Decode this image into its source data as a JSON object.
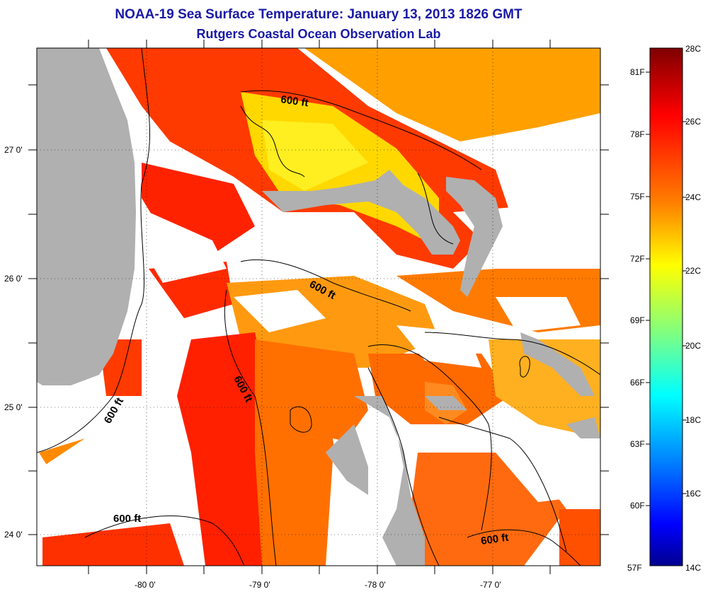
{
  "title": "NOAA-19 Sea Surface Temperature:  January 13, 2013 1826 GMT",
  "subtitle": "Rutgers Coastal Ocean Observation Lab",
  "map": {
    "lat_labels": [
      "27 0'",
      "26 0'",
      "25 0'",
      "24 0'"
    ],
    "lon_labels": [
      "-80 0'",
      "-79 0'",
      "-78 0'",
      "-77 0'"
    ],
    "contour_labels": [
      "600 ft",
      "600 ft",
      "600 ft",
      "600 ft",
      "600 ft",
      "600 ft"
    ]
  },
  "colorbar": {
    "celsius_labels": [
      "28C",
      "26C",
      "24C",
      "22C",
      "20C",
      "18C",
      "16C",
      "14C"
    ],
    "fahrenheit_labels": [
      "81F",
      "78F",
      "75F",
      "72F",
      "69F",
      "66F",
      "63F",
      "60F",
      "57F"
    ],
    "colors": [
      "#7f0000",
      "#ff0000",
      "#ff8000",
      "#ffff00",
      "#80ff80",
      "#00ffff",
      "#0080ff",
      "#0000ff",
      "#00008f"
    ]
  }
}
